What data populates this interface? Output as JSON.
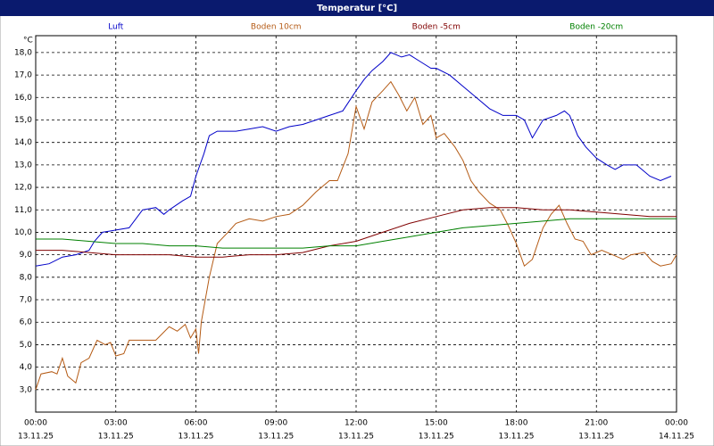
{
  "chart_data": {
    "type": "line",
    "title": "Temperatur [°C]",
    "y_label": "°C",
    "xlim": [
      0,
      24
    ],
    "ylim": [
      2,
      18.75
    ],
    "grid": true,
    "xticks": [
      {
        "value": 0,
        "label": "00:00"
      },
      {
        "value": 3,
        "label": "03:00"
      },
      {
        "value": 6,
        "label": "06:00"
      },
      {
        "value": 9,
        "label": "09:00"
      },
      {
        "value": 12,
        "label": "12:00"
      },
      {
        "value": 15,
        "label": "15:00"
      },
      {
        "value": 18,
        "label": "18:00"
      },
      {
        "value": 21,
        "label": "21:00"
      },
      {
        "value": 24,
        "label": "00:00"
      }
    ],
    "xtick_dates": [
      "13.11.25",
      "13.11.25",
      "13.11.25",
      "13.11.25",
      "13.11.25",
      "13.11.25",
      "13.11.25",
      "13.11.25",
      "14.11.25"
    ],
    "yticks": [
      {
        "value": 3,
        "label": "3,0"
      },
      {
        "value": 4,
        "label": "4,0"
      },
      {
        "value": 5,
        "label": "5,0"
      },
      {
        "value": 6,
        "label": "6,0"
      },
      {
        "value": 7,
        "label": "7,0"
      },
      {
        "value": 8,
        "label": "8,0"
      },
      {
        "value": 9,
        "label": "9,0"
      },
      {
        "value": 10,
        "label": "10,0"
      },
      {
        "value": 11,
        "label": "11,0"
      },
      {
        "value": 12,
        "label": "12,0"
      },
      {
        "value": 13,
        "label": "13,0"
      },
      {
        "value": 14,
        "label": "14,0"
      },
      {
        "value": 15,
        "label": "15,0"
      },
      {
        "value": 16,
        "label": "16,0"
      },
      {
        "value": 17,
        "label": "17,0"
      },
      {
        "value": 18,
        "label": "18,0"
      }
    ],
    "series": [
      {
        "name": "Luft",
        "color": "#0000c8",
        "x": [
          0,
          0.5,
          1,
          1.5,
          2,
          2.2,
          2.5,
          3,
          3.5,
          4,
          4.5,
          4.8,
          5,
          5.5,
          5.8,
          6,
          6.3,
          6.5,
          6.8,
          7.5,
          8,
          8.5,
          9,
          9.5,
          10,
          10.5,
          11,
          11.5,
          12,
          12.3,
          12.6,
          13,
          13.3,
          13.7,
          14,
          14.4,
          14.8,
          15,
          15.5,
          16,
          16.5,
          17,
          17.5,
          18,
          18.3,
          18.6,
          19,
          19.5,
          19.8,
          20,
          20.3,
          20.6,
          21,
          21.4,
          21.7,
          22,
          22.5,
          23,
          23.4,
          23.8
        ],
        "values": [
          8.5,
          8.6,
          8.9,
          9.0,
          9.2,
          9.6,
          10.0,
          10.1,
          10.2,
          11.0,
          11.1,
          10.8,
          11.0,
          11.4,
          11.6,
          12.5,
          13.5,
          14.3,
          14.5,
          14.5,
          14.6,
          14.7,
          14.5,
          14.7,
          14.8,
          15.0,
          15.2,
          15.4,
          16.3,
          16.8,
          17.2,
          17.6,
          18.0,
          17.8,
          17.9,
          17.6,
          17.3,
          17.3,
          17.0,
          16.5,
          16.0,
          15.5,
          15.2,
          15.2,
          15.0,
          14.2,
          15.0,
          15.2,
          15.4,
          15.2,
          14.3,
          13.8,
          13.3,
          13.0,
          12.8,
          13.0,
          13.0,
          12.5,
          12.3,
          12.5
        ]
      },
      {
        "name": "Boden 10cm",
        "color": "#b45a14",
        "x": [
          0,
          0.2,
          0.6,
          0.8,
          1,
          1.2,
          1.5,
          1.7,
          2,
          2.3,
          2.6,
          2.8,
          3,
          3.3,
          3.5,
          4,
          4.5,
          5,
          5.3,
          5.6,
          5.8,
          6,
          6.1,
          6.2,
          6.5,
          6.8,
          7.2,
          7.5,
          8,
          8.5,
          9,
          9.5,
          10,
          10.5,
          11,
          11.3,
          11.7,
          12,
          12.3,
          12.6,
          13,
          13.3,
          13.6,
          13.9,
          14.2,
          14.5,
          14.8,
          15,
          15.3,
          15.7,
          16,
          16.3,
          16.6,
          17,
          17.4,
          17.7,
          18,
          18.3,
          18.6,
          19,
          19.3,
          19.6,
          19.9,
          20.2,
          20.5,
          20.8,
          21.2,
          21.6,
          22,
          22.3,
          22.8,
          23.1,
          23.4,
          23.8,
          24
        ],
        "values": [
          3.0,
          3.7,
          3.8,
          3.7,
          4.4,
          3.6,
          3.3,
          4.2,
          4.4,
          5.2,
          5.0,
          5.1,
          4.5,
          4.6,
          5.2,
          5.2,
          5.2,
          5.8,
          5.6,
          5.9,
          5.3,
          5.7,
          4.6,
          6.0,
          8.0,
          9.5,
          10.0,
          10.4,
          10.6,
          10.5,
          10.7,
          10.8,
          11.2,
          11.8,
          12.3,
          12.3,
          13.5,
          15.6,
          14.6,
          15.8,
          16.3,
          16.7,
          16.1,
          15.4,
          16.0,
          14.8,
          15.2,
          14.2,
          14.4,
          13.8,
          13.2,
          12.3,
          11.8,
          11.3,
          11.0,
          10.3,
          9.5,
          8.5,
          8.8,
          10.2,
          10.8,
          11.2,
          10.4,
          9.7,
          9.6,
          9.0,
          9.2,
          9.0,
          8.8,
          9.0,
          9.1,
          8.7,
          8.5,
          8.6,
          9.0
        ]
      },
      {
        "name": "Boden -5cm",
        "color": "#800000",
        "x": [
          0,
          1,
          2,
          3,
          5,
          6,
          7,
          8,
          9,
          10,
          11,
          12,
          13,
          14,
          15,
          16,
          17,
          18,
          19,
          20,
          21,
          22,
          23,
          24
        ],
        "values": [
          9.2,
          9.2,
          9.1,
          9.0,
          9.0,
          8.9,
          8.9,
          9.0,
          9.0,
          9.1,
          9.4,
          9.6,
          10.0,
          10.4,
          10.7,
          11.0,
          11.1,
          11.1,
          11.0,
          11.0,
          10.9,
          10.8,
          10.7,
          10.7
        ]
      },
      {
        "name": "Boden -20cm",
        "color": "#008000",
        "x": [
          0,
          1,
          2,
          3,
          4,
          5,
          6,
          7,
          8,
          9,
          10,
          11,
          12,
          13,
          14,
          15,
          16,
          17,
          18,
          19,
          20,
          21,
          22,
          23,
          24
        ],
        "values": [
          9.7,
          9.7,
          9.6,
          9.5,
          9.5,
          9.4,
          9.4,
          9.3,
          9.3,
          9.3,
          9.3,
          9.4,
          9.4,
          9.6,
          9.8,
          10.0,
          10.2,
          10.3,
          10.4,
          10.5,
          10.6,
          10.6,
          10.6,
          10.6,
          10.6
        ]
      }
    ]
  }
}
